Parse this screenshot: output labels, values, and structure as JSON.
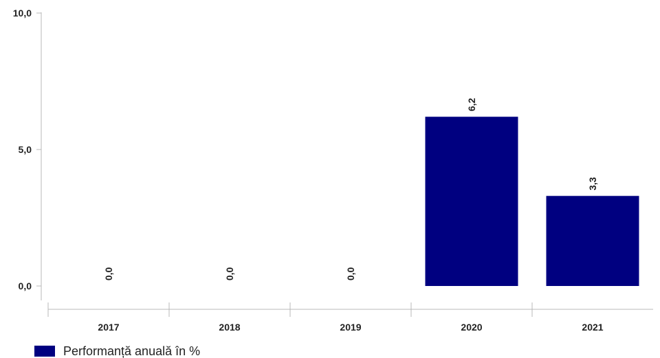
{
  "chart_data": {
    "type": "bar",
    "categories": [
      "2017",
      "2018",
      "2019",
      "2020",
      "2021"
    ],
    "series": [
      {
        "name": "Performanță anuală în %",
        "values": [
          0.0,
          0.0,
          0.0,
          6.2,
          3.3
        ],
        "data_labels": [
          "0,0",
          "0,0",
          "0,0",
          "6,2",
          "3,3"
        ]
      }
    ],
    "y_ticks": [
      {
        "value": 0,
        "label": "0,0"
      },
      {
        "value": 5,
        "label": "5,0"
      },
      {
        "value": 10,
        "label": "10,0"
      }
    ],
    "ylim": [
      0,
      10
    ],
    "title": "",
    "xlabel": "",
    "ylabel": "",
    "grid": false,
    "legend_position": "bottom-left",
    "colors": {
      "bar": "#000080",
      "axis": "#b8b8b8",
      "text": "#222222"
    }
  }
}
